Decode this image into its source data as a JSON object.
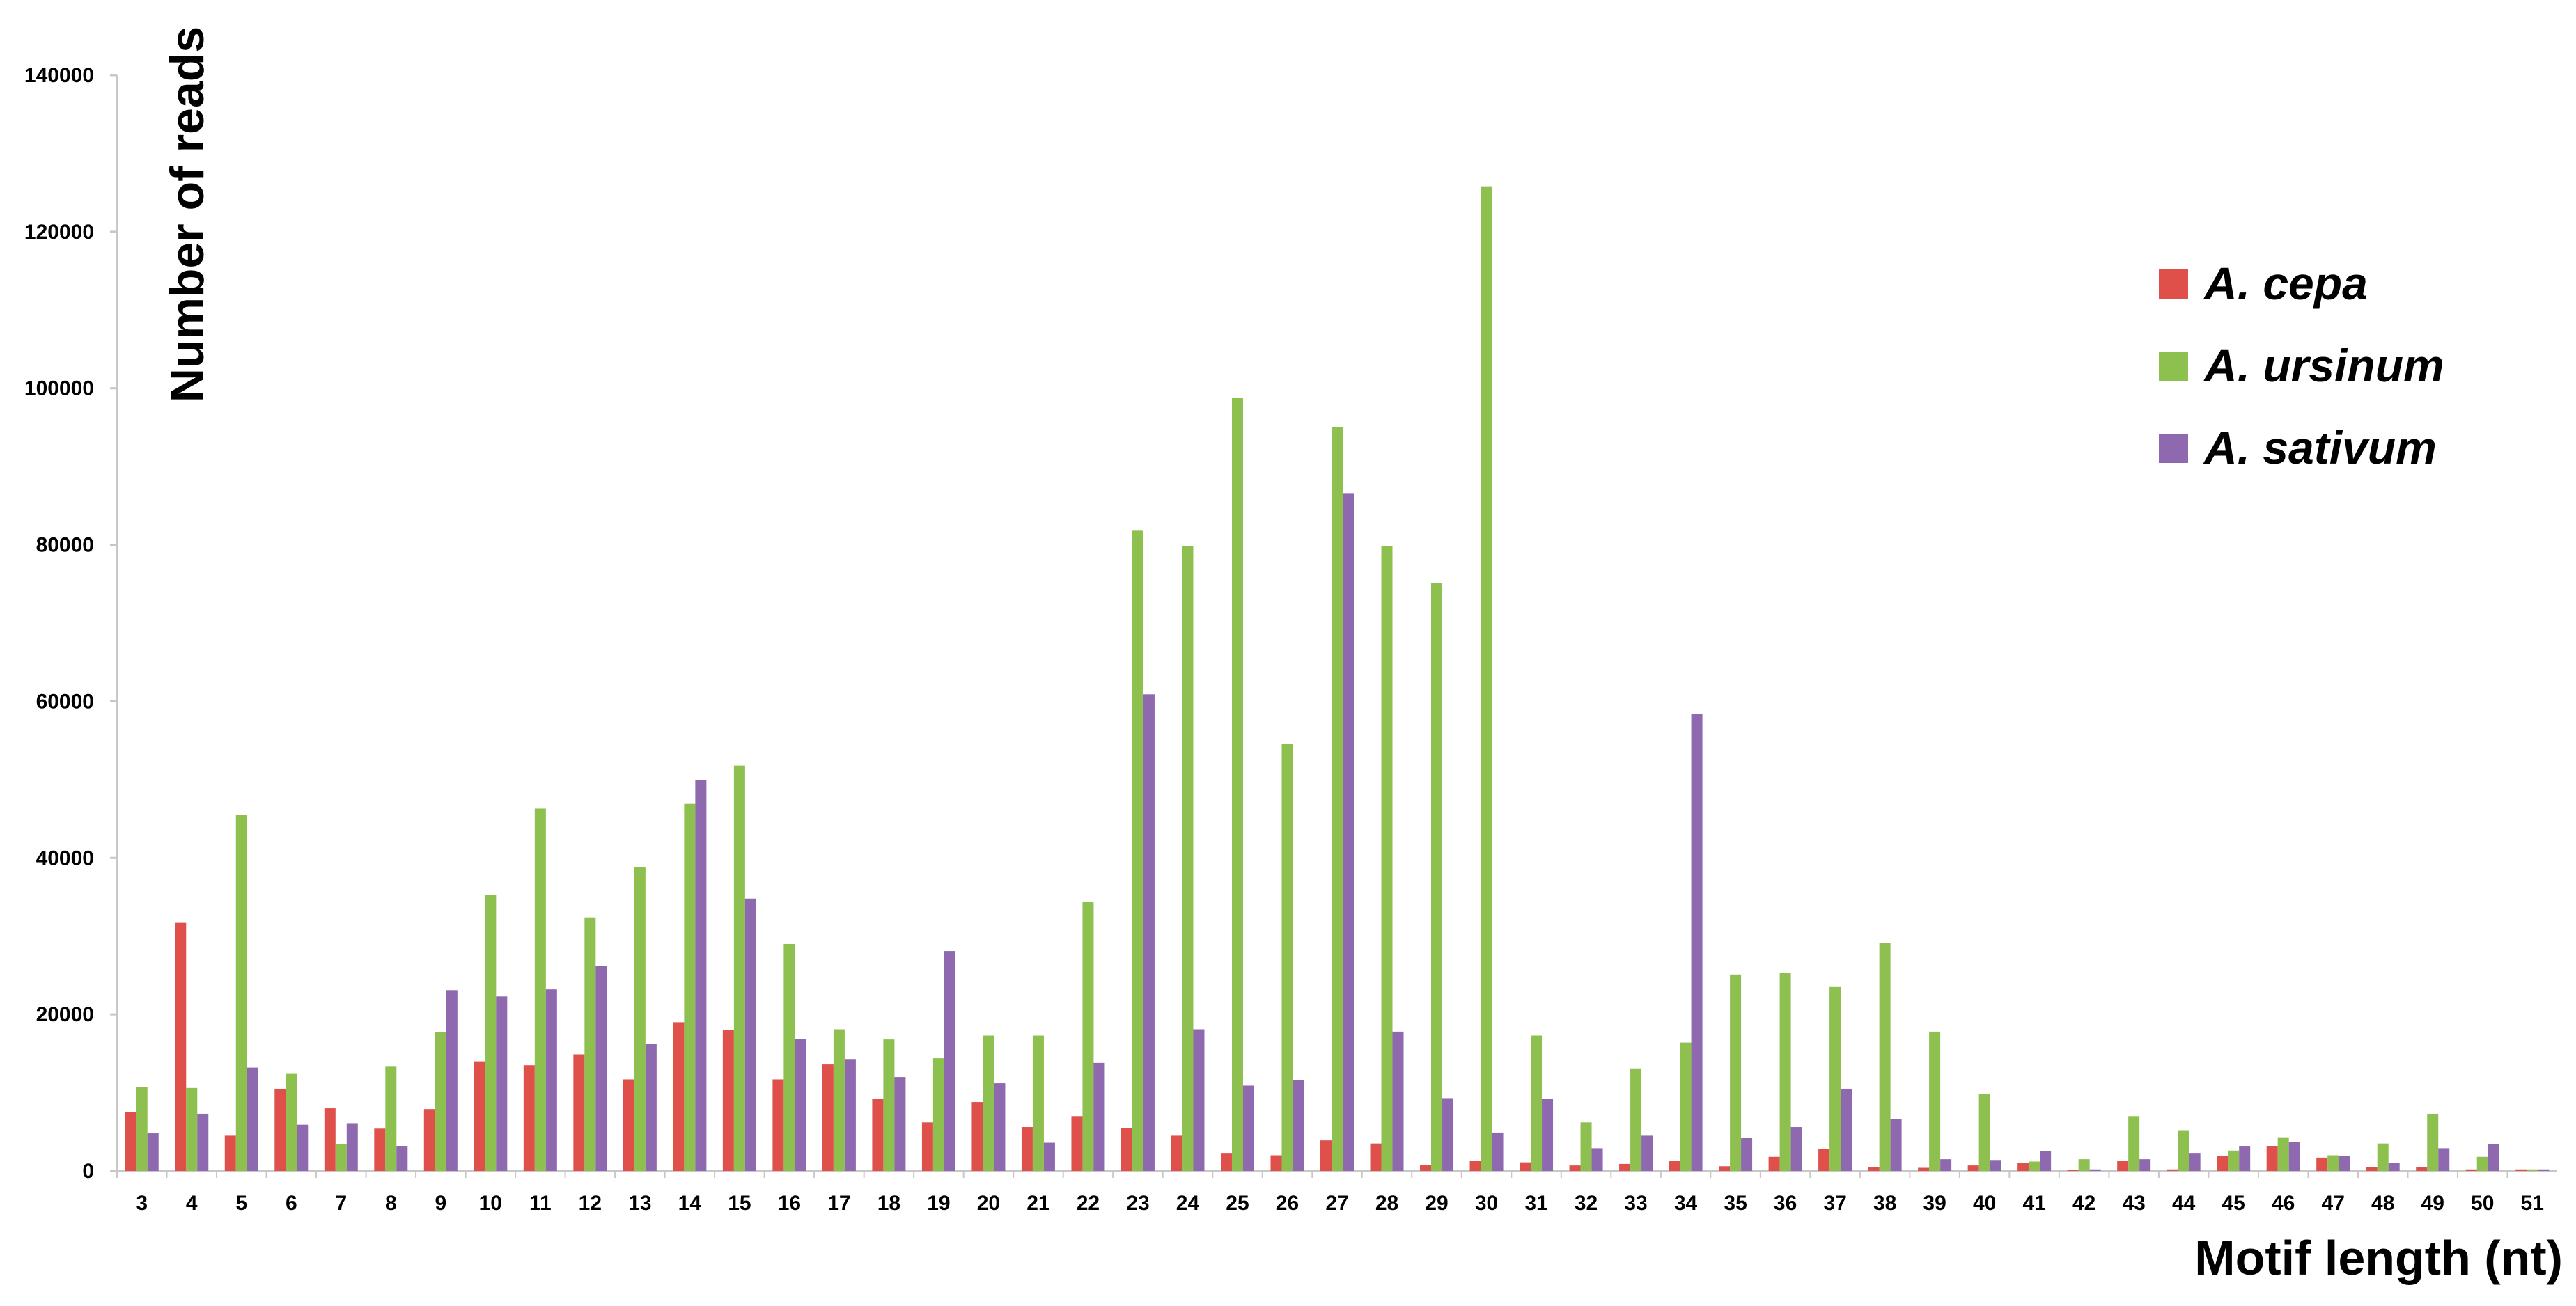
{
  "chart_data": {
    "type": "bar",
    "title": "",
    "xlabel": "Motif length (nt)",
    "ylabel": "Number of reads",
    "ylim": [
      0,
      140000
    ],
    "yticks": [
      0,
      20000,
      40000,
      60000,
      80000,
      100000,
      120000,
      140000
    ],
    "grid": false,
    "legend_position": "top-right",
    "categories": [
      "3",
      "4",
      "5",
      "6",
      "7",
      "8",
      "9",
      "10",
      "11",
      "12",
      "13",
      "14",
      "15",
      "16",
      "17",
      "18",
      "19",
      "20",
      "21",
      "22",
      "23",
      "24",
      "25",
      "26",
      "27",
      "28",
      "29",
      "30",
      "31",
      "32",
      "33",
      "34",
      "35",
      "36",
      "37",
      "38",
      "39",
      "40",
      "41",
      "42",
      "43",
      "44",
      "45",
      "46",
      "47",
      "48",
      "49",
      "50",
      "51"
    ],
    "series": [
      {
        "name": "A. cepa",
        "color": "#e0504a",
        "values": [
          7500,
          31700,
          4500,
          10500,
          8000,
          5400,
          7900,
          14000,
          13500,
          14900,
          11700,
          19000,
          18000,
          11700,
          13600,
          9200,
          6200,
          8800,
          5600,
          7000,
          5500,
          4500,
          2300,
          2000,
          3900,
          3500,
          800,
          1300,
          1100,
          700,
          900,
          1300,
          600,
          1800,
          2800,
          500,
          400,
          700,
          1000,
          100,
          1300,
          200,
          1900,
          3200,
          1700,
          500,
          500,
          200,
          200
        ]
      },
      {
        "name": "A. ursinum",
        "color": "#8dc04e",
        "values": [
          10700,
          10600,
          45500,
          12400,
          3400,
          13400,
          17700,
          35300,
          46300,
          32400,
          38800,
          46900,
          51800,
          29000,
          18100,
          16800,
          14400,
          17300,
          17300,
          34400,
          81800,
          79800,
          98800,
          54600,
          95000,
          79800,
          75100,
          125800,
          17300,
          6200,
          13100,
          16400,
          25100,
          25300,
          23500,
          29100,
          17800,
          9800,
          1200,
          1500,
          7000,
          5200,
          2600,
          4300,
          2000,
          3500,
          7300,
          1800,
          200
        ]
      },
      {
        "name": "A. sativum",
        "color": "#8f69af",
        "values": [
          4800,
          7300,
          13200,
          5900,
          6100,
          3200,
          23100,
          22300,
          23200,
          26200,
          16200,
          49900,
          34800,
          16900,
          14300,
          12000,
          28100,
          11200,
          3600,
          13800,
          60900,
          18100,
          10900,
          11600,
          86600,
          17800,
          9300,
          4900,
          9200,
          2900,
          4500,
          58400,
          4200,
          5600,
          10500,
          6600,
          1500,
          1400,
          2500,
          200,
          1500,
          2300,
          3200,
          3700,
          1900,
          1000,
          2900,
          3400,
          200
        ]
      }
    ]
  }
}
